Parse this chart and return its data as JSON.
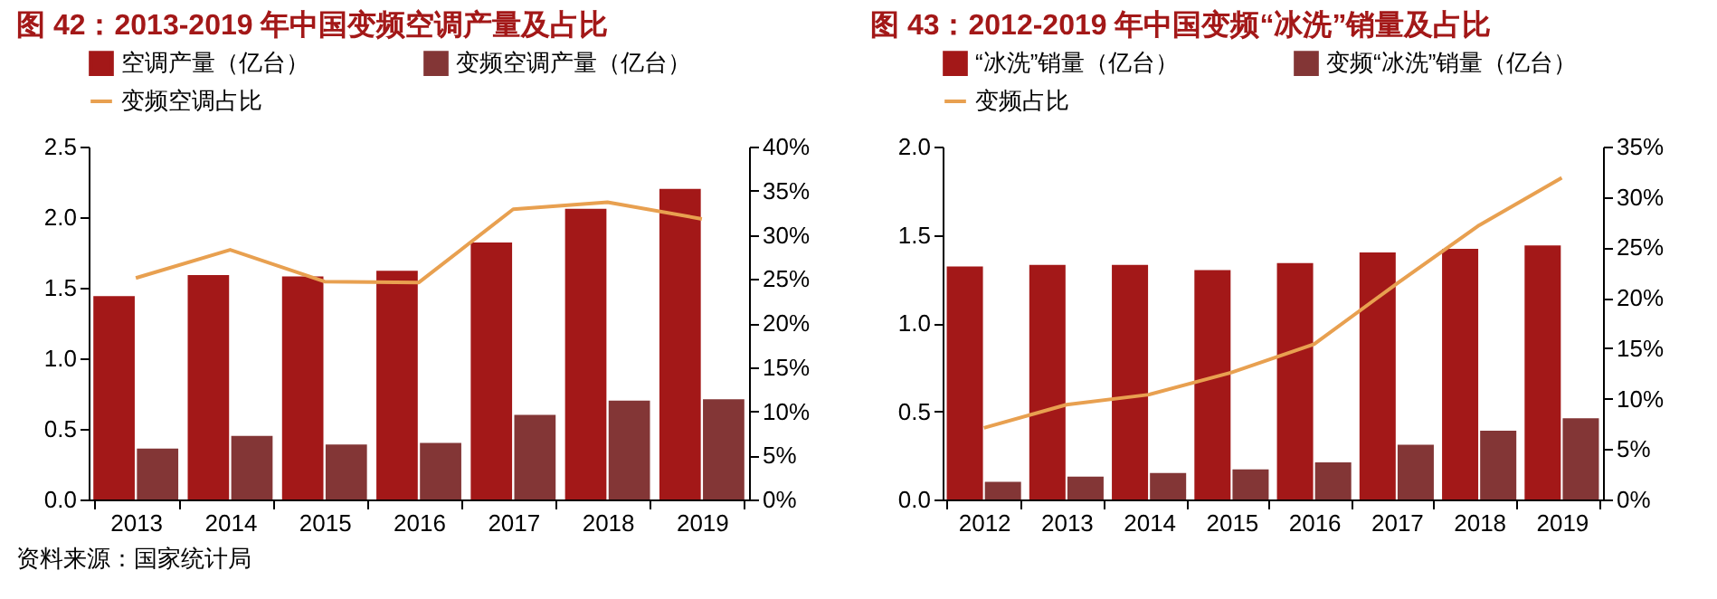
{
  "chart_data": [
    {
      "type": "bar",
      "title": "图 42：2013-2019 年中国变频空调产量及占比",
      "categories": [
        "2013",
        "2014",
        "2015",
        "2016",
        "2017",
        "2018",
        "2019"
      ],
      "series": [
        {
          "name": "空调产量（亿台）",
          "color": "#a31818",
          "values": [
            1.44,
            1.59,
            1.58,
            1.62,
            1.82,
            2.06,
            2.2
          ]
        },
        {
          "name": "变频空调产量（亿台）",
          "color": "#833636",
          "values": [
            0.36,
            0.45,
            0.39,
            0.4,
            0.6,
            0.7,
            0.71
          ]
        },
        {
          "name": "变频空调占比",
          "type": "line",
          "axis": "y2",
          "color": "#e8a050",
          "values": [
            25.1,
            28.3,
            24.7,
            24.6,
            32.9,
            33.7,
            31.8
          ]
        }
      ],
      "ylim": [
        0,
        2.5
      ],
      "yticks": [
        {
          "value": 0,
          "label": "0.0"
        },
        {
          "value": 0.5,
          "label": "0.5"
        },
        {
          "value": 1,
          "label": "1.0"
        },
        {
          "value": 1.5,
          "label": "1.5"
        },
        {
          "value": 2,
          "label": "2.0"
        },
        {
          "value": 2.5,
          "label": "2.5"
        }
      ],
      "y2lim": [
        0,
        40
      ],
      "y2ticks": [
        {
          "value": 0,
          "label": "0%"
        },
        {
          "value": 5,
          "label": "5%"
        },
        {
          "value": 10,
          "label": "10%"
        },
        {
          "value": 15,
          "label": "15%"
        },
        {
          "value": 20,
          "label": "20%"
        },
        {
          "value": 25,
          "label": "25%"
        },
        {
          "value": 30,
          "label": "30%"
        },
        {
          "value": 35,
          "label": "35%"
        },
        {
          "value": 40,
          "label": "40%"
        }
      ],
      "legend": "top",
      "annotations": [
        "资料来源：国家统计局"
      ]
    },
    {
      "type": "bar",
      "title": "图 43：2012-2019 年中国变频“冰洗”销量及占比",
      "categories": [
        "2012",
        "2013",
        "2014",
        "2015",
        "2016",
        "2017",
        "2018",
        "2019"
      ],
      "series": [
        {
          "name": "“冰洗”销量（亿台）",
          "color": "#a31818",
          "values": [
            1.32,
            1.33,
            1.33,
            1.3,
            1.34,
            1.4,
            1.42,
            1.44
          ]
        },
        {
          "name": "变频“冰洗”销量（亿台）",
          "color": "#833636",
          "values": [
            0.1,
            0.13,
            0.15,
            0.17,
            0.21,
            0.31,
            0.39,
            0.46
          ]
        },
        {
          "name": "变频占比",
          "type": "line",
          "axis": "y2",
          "color": "#e8a050",
          "values": [
            7.1,
            9.4,
            10.4,
            12.6,
            15.4,
            21.4,
            27.2,
            31.9
          ]
        }
      ],
      "ylim": [
        0,
        2
      ],
      "yticks": [
        {
          "value": 0,
          "label": "0.0"
        },
        {
          "value": 0.5,
          "label": "0.5"
        },
        {
          "value": 1,
          "label": "1.0"
        },
        {
          "value": 1.5,
          "label": "1.5"
        },
        {
          "value": 2,
          "label": "2.0"
        }
      ],
      "y2lim": [
        0,
        35
      ],
      "y2ticks": [
        {
          "value": 0,
          "label": "0%"
        },
        {
          "value": 5,
          "label": "5%"
        },
        {
          "value": 10,
          "label": "10%"
        },
        {
          "value": 15,
          "label": "15%"
        },
        {
          "value": 20,
          "label": "20%"
        },
        {
          "value": 25,
          "label": "25%"
        },
        {
          "value": 30,
          "label": "30%"
        },
        {
          "value": 35,
          "label": "35%"
        }
      ],
      "legend": "top"
    }
  ]
}
